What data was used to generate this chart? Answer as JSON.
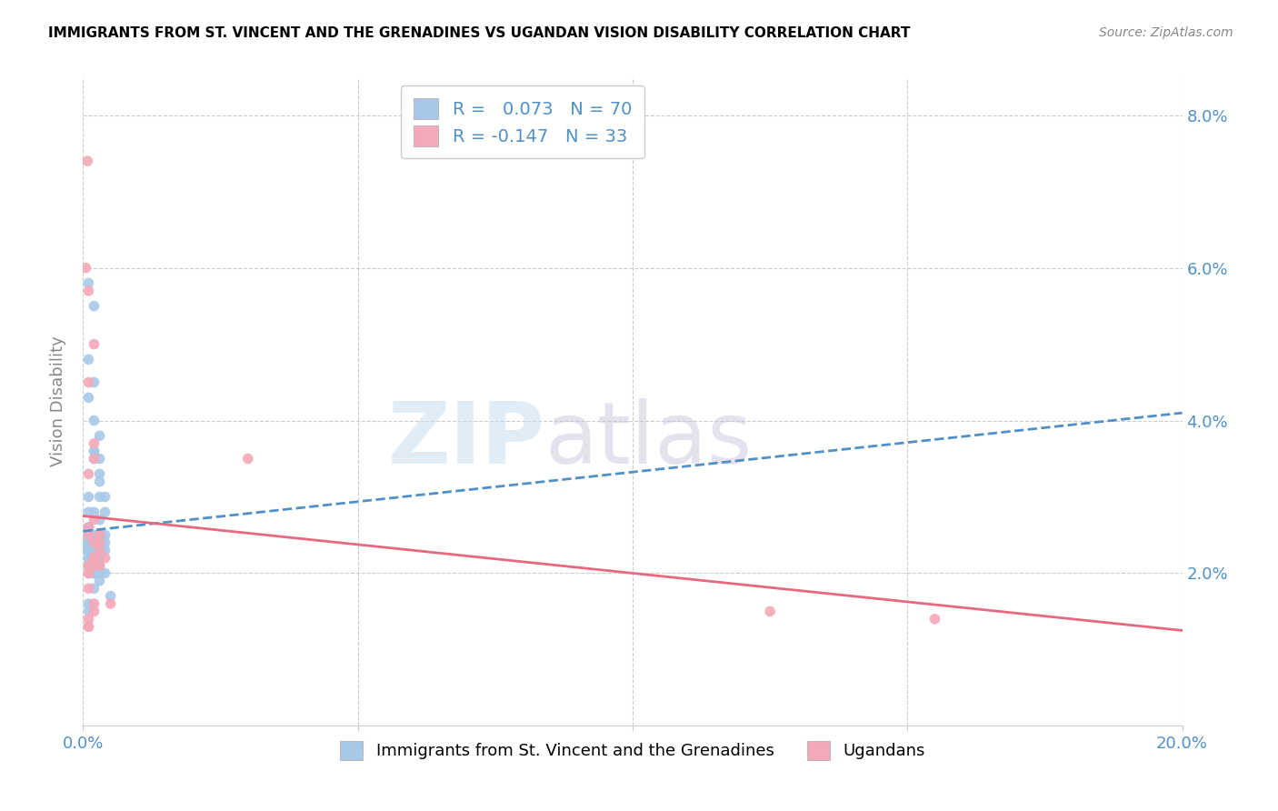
{
  "title": "IMMIGRANTS FROM ST. VINCENT AND THE GRENADINES VS UGANDAN VISION DISABILITY CORRELATION CHART",
  "source": "Source: ZipAtlas.com",
  "ylabel": "Vision Disability",
  "xlim": [
    0.0,
    0.2
  ],
  "ylim": [
    0.0,
    0.085
  ],
  "blue_color": "#a8c8e8",
  "pink_color": "#f4a8b8",
  "trendline_blue_color": "#5090c8",
  "trendline_pink_color": "#e86880",
  "legend_R1_label": "R = ",
  "legend_R1_val": " 0.073",
  "legend_N1_label": "N = ",
  "legend_N1_val": "70",
  "legend_R2_label": "R = ",
  "legend_R2_val": "-0.147",
  "legend_N2_label": "N = ",
  "legend_N2_val": "33",
  "legend_label1": "Immigrants from St. Vincent and the Grenadines",
  "legend_label2": "Ugandans",
  "watermark_zip": "ZIP",
  "watermark_atlas": "atlas",
  "blue_scatter_x": [
    0.001,
    0.0005,
    0.0008,
    0.001,
    0.002,
    0.001,
    0.0015,
    0.003,
    0.002,
    0.001,
    0.001,
    0.002,
    0.003,
    0.004,
    0.003,
    0.004,
    0.002,
    0.002,
    0.003,
    0.001,
    0.002,
    0.003,
    0.003,
    0.001,
    0.002,
    0.003,
    0.002,
    0.004,
    0.001,
    0.002,
    0.002,
    0.001,
    0.001,
    0.003,
    0.002,
    0.001,
    0.001,
    0.002,
    0.001,
    0.001,
    0.001,
    0.002,
    0.002,
    0.003,
    0.001,
    0.002,
    0.001,
    0.003,
    0.003,
    0.004,
    0.002,
    0.001,
    0.002,
    0.003,
    0.002,
    0.002,
    0.003,
    0.003,
    0.001,
    0.004,
    0.001,
    0.002,
    0.001,
    0.003,
    0.004,
    0.005,
    0.002,
    0.001,
    0.001,
    0.003
  ],
  "blue_scatter_y": [
    0.025,
    0.024,
    0.023,
    0.024,
    0.025,
    0.023,
    0.022,
    0.025,
    0.024,
    0.026,
    0.024,
    0.028,
    0.027,
    0.025,
    0.03,
    0.028,
    0.035,
    0.036,
    0.033,
    0.043,
    0.04,
    0.035,
    0.032,
    0.048,
    0.045,
    0.038,
    0.036,
    0.03,
    0.058,
    0.055,
    0.025,
    0.023,
    0.022,
    0.025,
    0.024,
    0.022,
    0.021,
    0.025,
    0.026,
    0.02,
    0.022,
    0.024,
    0.023,
    0.024,
    0.025,
    0.022,
    0.022,
    0.021,
    0.023,
    0.024,
    0.023,
    0.015,
    0.021,
    0.019,
    0.02,
    0.018,
    0.02,
    0.022,
    0.016,
    0.02,
    0.022,
    0.02,
    0.022,
    0.022,
    0.023,
    0.017,
    0.02,
    0.028,
    0.03,
    0.024
  ],
  "pink_scatter_x": [
    0.0005,
    0.001,
    0.0008,
    0.002,
    0.001,
    0.002,
    0.001,
    0.002,
    0.001,
    0.003,
    0.002,
    0.002,
    0.003,
    0.001,
    0.001,
    0.002,
    0.002,
    0.001,
    0.001,
    0.002,
    0.002,
    0.003,
    0.001,
    0.002,
    0.001,
    0.001,
    0.004,
    0.003,
    0.005,
    0.001,
    0.125,
    0.155,
    0.03
  ],
  "pink_scatter_y": [
    0.06,
    0.057,
    0.074,
    0.05,
    0.045,
    0.037,
    0.033,
    0.035,
    0.025,
    0.025,
    0.024,
    0.022,
    0.021,
    0.02,
    0.018,
    0.016,
    0.015,
    0.014,
    0.013,
    0.022,
    0.021,
    0.024,
    0.026,
    0.027,
    0.02,
    0.021,
    0.022,
    0.023,
    0.016,
    0.013,
    0.015,
    0.014,
    0.035
  ],
  "blue_trend_x": [
    0.0,
    0.2
  ],
  "blue_trend_y": [
    0.0255,
    0.041
  ],
  "pink_trend_x": [
    0.0,
    0.2
  ],
  "pink_trend_y": [
    0.0275,
    0.0125
  ]
}
